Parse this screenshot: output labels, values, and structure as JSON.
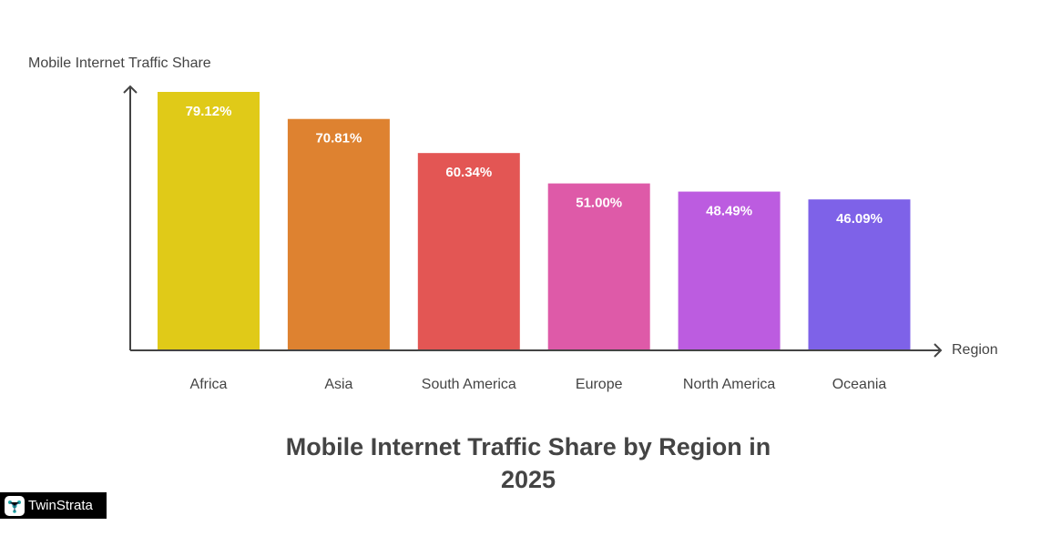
{
  "chart_data": {
    "type": "bar",
    "title": "Mobile Internet Traffic Share by Region in 2025",
    "xlabel": "Region",
    "ylabel": "Mobile Internet Traffic Share",
    "categories": [
      "Africa",
      "Asia",
      "South America",
      "Europe",
      "North America",
      "Oceania"
    ],
    "values": [
      79.12,
      70.81,
      60.34,
      51.0,
      48.49,
      46.09
    ],
    "data_labels": [
      "79.12%",
      "70.81%",
      "60.34%",
      "51.00%",
      "48.49%",
      "46.09%"
    ],
    "colors": [
      "#E0CA18",
      "#DE8230",
      "#E35654",
      "#DE5AA8",
      "#BC5CE0",
      "#7E62E8"
    ],
    "ylim": [
      0,
      80
    ],
    "grid": false
  },
  "brand": {
    "name": "TwinStrata"
  }
}
